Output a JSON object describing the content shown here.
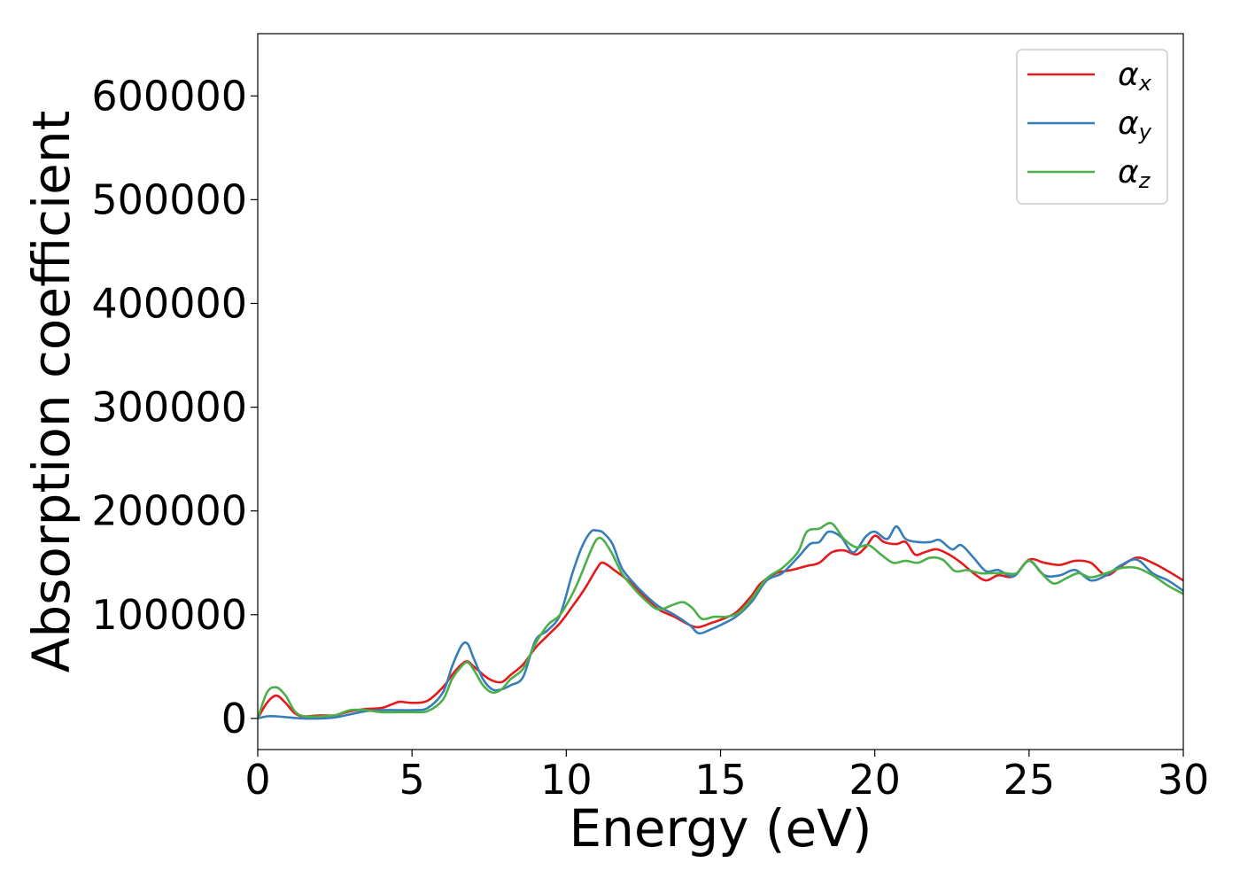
{
  "chart_data": {
    "type": "line",
    "xlabel": "Energy (eV)",
    "ylabel": "Absorption coefficient",
    "xlim": [
      0,
      30
    ],
    "ylim": [
      -30000,
      660000
    ],
    "xticks": [
      0,
      5,
      10,
      15,
      20,
      25,
      30
    ],
    "xtick_labels": [
      "0",
      "5",
      "10",
      "15",
      "20",
      "25",
      "30"
    ],
    "yticks": [
      0,
      100000,
      200000,
      300000,
      400000,
      500000,
      600000
    ],
    "ytick_labels": [
      "0",
      "100000",
      "200000",
      "300000",
      "400000",
      "500000",
      "600000"
    ],
    "grid": false,
    "legend_position": "top-right",
    "series": [
      {
        "name": "αx",
        "symbol": "α",
        "sub": "x",
        "color": "#e41a1c",
        "x": [
          0,
          0.3,
          0.6,
          0.9,
          1.2,
          1.5,
          2.0,
          2.5,
          3.0,
          3.5,
          4.0,
          4.3,
          4.6,
          5.0,
          5.5,
          6.0,
          6.3,
          6.6,
          6.8,
          7.0,
          7.5,
          7.9,
          8.2,
          8.6,
          9.0,
          9.4,
          9.8,
          10.2,
          10.6,
          11.0,
          11.2,
          11.6,
          12.0,
          12.5,
          13.0,
          13.5,
          14.0,
          14.3,
          14.7,
          15.0,
          15.5,
          16.0,
          16.3,
          16.8,
          17.3,
          17.8,
          18.2,
          18.6,
          19.0,
          19.4,
          19.7,
          20.0,
          20.3,
          20.7,
          21.0,
          21.3,
          21.6,
          22.0,
          22.4,
          22.8,
          23.2,
          23.6,
          24.0,
          24.5,
          25.0,
          25.5,
          26.0,
          26.5,
          27.0,
          27.5,
          28.0,
          28.5,
          29.0,
          29.5,
          30.0
        ],
        "y": [
          0,
          15000,
          22000,
          15000,
          5000,
          2000,
          3000,
          3000,
          7000,
          9000,
          10000,
          13000,
          16000,
          15000,
          17000,
          30000,
          42000,
          52000,
          55000,
          50000,
          38000,
          35000,
          42000,
          52000,
          68000,
          80000,
          92000,
          108000,
          125000,
          145000,
          150000,
          142000,
          133000,
          118000,
          105000,
          98000,
          90000,
          88000,
          92000,
          95000,
          102000,
          118000,
          130000,
          140000,
          143000,
          147000,
          150000,
          160000,
          162000,
          158000,
          165000,
          176000,
          170000,
          168000,
          170000,
          158000,
          160000,
          163000,
          158000,
          150000,
          140000,
          133000,
          138000,
          137000,
          153000,
          150000,
          148000,
          152000,
          150000,
          138000,
          147000,
          155000,
          150000,
          142000,
          133000
        ]
      },
      {
        "name": "αy",
        "symbol": "α",
        "sub": "y",
        "color": "#377eb8",
        "x": [
          0,
          0.3,
          0.6,
          1.0,
          1.5,
          2.0,
          2.5,
          3.0,
          3.5,
          4.0,
          4.5,
          5.0,
          5.5,
          6.0,
          6.3,
          6.6,
          6.8,
          7.0,
          7.3,
          7.6,
          7.9,
          8.2,
          8.6,
          9.0,
          9.4,
          9.8,
          10.2,
          10.5,
          10.8,
          11.0,
          11.2,
          11.5,
          11.8,
          12.2,
          12.6,
          13.0,
          13.5,
          14.0,
          14.3,
          14.7,
          15.0,
          15.5,
          16.0,
          16.5,
          17.0,
          17.5,
          17.9,
          18.2,
          18.5,
          18.9,
          19.3,
          19.7,
          20.0,
          20.4,
          20.7,
          21.0,
          21.4,
          21.8,
          22.1,
          22.5,
          22.8,
          23.2,
          23.6,
          24.0,
          24.5,
          25.0,
          25.5,
          26.0,
          26.5,
          27.0,
          27.5,
          28.0,
          28.5,
          29.0,
          29.5,
          30.0
        ],
        "y": [
          0,
          2000,
          2000,
          1000,
          0,
          0,
          1000,
          4000,
          7000,
          8000,
          8000,
          8000,
          10000,
          25000,
          50000,
          70000,
          72000,
          58000,
          38000,
          28000,
          28000,
          32000,
          40000,
          75000,
          85000,
          100000,
          140000,
          165000,
          180000,
          181000,
          179000,
          168000,
          145000,
          130000,
          118000,
          108000,
          100000,
          90000,
          82000,
          86000,
          90000,
          98000,
          112000,
          133000,
          140000,
          155000,
          168000,
          170000,
          180000,
          175000,
          160000,
          175000,
          180000,
          173000,
          185000,
          173000,
          170000,
          170000,
          172000,
          163000,
          167000,
          155000,
          142000,
          143000,
          137000,
          152000,
          138000,
          138000,
          143000,
          133000,
          138000,
          148000,
          153000,
          140000,
          133000,
          123000
        ]
      },
      {
        "name": "αz",
        "symbol": "α",
        "sub": "z",
        "color": "#4daf4a",
        "x": [
          0,
          0.3,
          0.6,
          0.9,
          1.2,
          1.5,
          2.0,
          2.5,
          3.0,
          3.5,
          4.0,
          4.5,
          5.0,
          5.5,
          6.0,
          6.3,
          6.6,
          6.8,
          7.0,
          7.3,
          7.6,
          7.9,
          8.2,
          8.6,
          9.0,
          9.4,
          9.8,
          10.2,
          10.5,
          10.8,
          11.0,
          11.2,
          11.5,
          11.8,
          12.2,
          12.6,
          13.0,
          13.5,
          13.8,
          14.1,
          14.4,
          14.8,
          15.2,
          15.6,
          16.0,
          16.5,
          17.0,
          17.5,
          17.8,
          18.2,
          18.6,
          19.0,
          19.4,
          19.8,
          20.2,
          20.6,
          21.0,
          21.4,
          21.8,
          22.2,
          22.6,
          23.0,
          23.4,
          23.8,
          24.2,
          24.6,
          25.0,
          25.4,
          25.8,
          26.2,
          26.6,
          27.0,
          27.5,
          28.0,
          28.5,
          29.0,
          29.5,
          30.0
        ],
        "y": [
          0,
          25000,
          30000,
          22000,
          7000,
          2000,
          2000,
          3000,
          8000,
          8000,
          6000,
          6000,
          6000,
          7000,
          18000,
          38000,
          50000,
          54000,
          47000,
          32000,
          25000,
          28000,
          38000,
          48000,
          72000,
          90000,
          100000,
          120000,
          140000,
          162000,
          173000,
          172000,
          158000,
          140000,
          125000,
          113000,
          105000,
          110000,
          112000,
          106000,
          96000,
          98000,
          98000,
          102000,
          115000,
          135000,
          145000,
          160000,
          180000,
          183000,
          188000,
          173000,
          165000,
          167000,
          158000,
          150000,
          152000,
          150000,
          155000,
          153000,
          142000,
          143000,
          140000,
          140000,
          140000,
          140000,
          152000,
          140000,
          130000,
          135000,
          140000,
          136000,
          140000,
          145000,
          145000,
          138000,
          128000,
          120000
        ]
      }
    ]
  }
}
